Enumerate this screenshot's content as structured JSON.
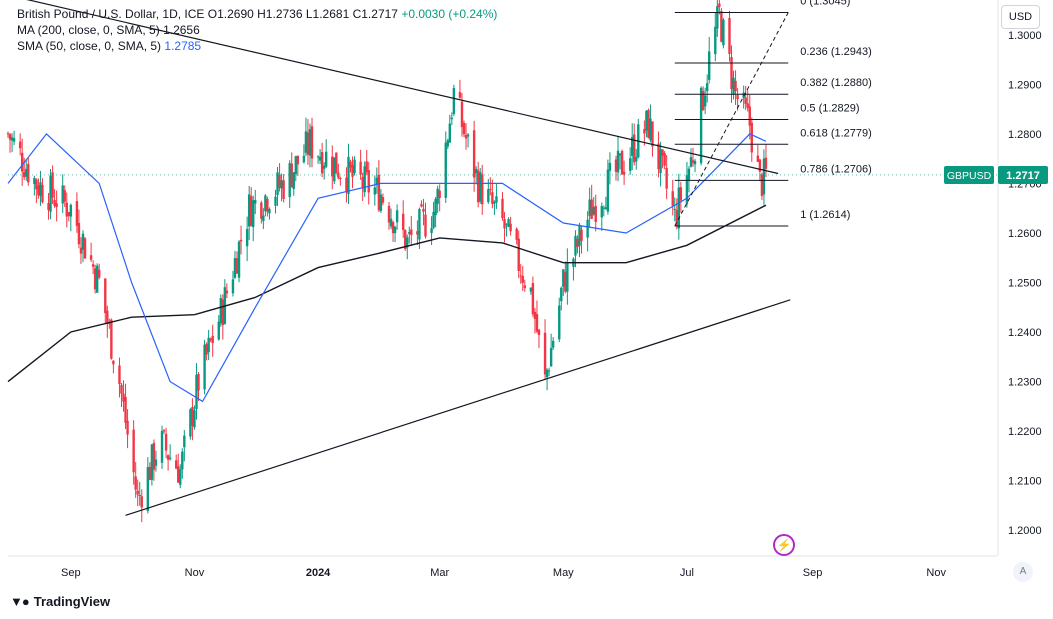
{
  "legend": {
    "title": "British Pound / U.S. Dollar, 1D, ICE",
    "ohlc": {
      "o": "O1.2690",
      "h": "H1.2736",
      "l": "L1.2681",
      "c": "C1.2717",
      "chg": "+0.0030 (+0.24%)"
    },
    "ma_label": "MA (200, close, 0, SMA, 5)",
    "ma_value": "1.2656",
    "sma_label": "SMA (50, close, 0, SMA, 5)",
    "sma_value": "1.2785"
  },
  "currency_button": "USD",
  "auto_button": "A",
  "brand": "TradingView",
  "price_tag": {
    "symbol": "GBPUSD",
    "value": "1.2717"
  },
  "colors": {
    "up": "#089981",
    "down": "#f23645",
    "ma200": "#131722",
    "sma50": "#2962ff",
    "tag": "#089981",
    "grid": "#f0f3fa"
  },
  "icons": {
    "logo": "tradingview-logo-icon",
    "flash": "lightning-icon"
  },
  "chart_data": {
    "type": "candlestick",
    "symbol": "GBPUSD",
    "ylim": [
      1.195,
      1.305
    ],
    "y_ticks": [
      "1.3000",
      "1.2900",
      "1.2800",
      "1.2700",
      "1.2600",
      "1.2500",
      "1.2400",
      "1.2300",
      "1.2200",
      "1.2100",
      "1.2000"
    ],
    "y_tick_values": [
      1.3,
      1.29,
      1.28,
      1.27,
      1.26,
      1.25,
      1.24,
      1.23,
      1.22,
      1.21,
      1.2
    ],
    "x_ticks": [
      "Sep",
      "Nov",
      "2024",
      "Mar",
      "May",
      "Jul",
      "Sep",
      "Nov"
    ],
    "x_tick_dates": [
      "2023-09-01",
      "2023-11-01",
      "2024-01-01",
      "2024-03-01",
      "2024-05-01",
      "2024-07-01",
      "2024-09-01",
      "2024-11-01"
    ],
    "x_range": [
      "2023-08-01",
      "2024-12-01"
    ],
    "price_path": [
      [
        "2023-08-01",
        1.28
      ],
      [
        "2023-08-15",
        1.27
      ],
      [
        "2023-09-01",
        1.265
      ],
      [
        "2023-09-15",
        1.25
      ],
      [
        "2023-09-25",
        1.23
      ],
      [
        "2023-10-04",
        1.206
      ],
      [
        "2023-10-15",
        1.218
      ],
      [
        "2023-10-25",
        1.212
      ],
      [
        "2023-11-03",
        1.23
      ],
      [
        "2023-11-15",
        1.245
      ],
      [
        "2023-11-28",
        1.265
      ],
      [
        "2023-12-15",
        1.27
      ],
      [
        "2023-12-28",
        1.278
      ],
      [
        "2024-01-15",
        1.272
      ],
      [
        "2024-02-01",
        1.268
      ],
      [
        "2024-02-14",
        1.258
      ],
      [
        "2024-02-28",
        1.265
      ],
      [
        "2024-03-08",
        1.288
      ],
      [
        "2024-03-20",
        1.27
      ],
      [
        "2024-04-01",
        1.262
      ],
      [
        "2024-04-15",
        1.248
      ],
      [
        "2024-04-22",
        1.23
      ],
      [
        "2024-05-01",
        1.25
      ],
      [
        "2024-05-15",
        1.265
      ],
      [
        "2024-06-01",
        1.275
      ],
      [
        "2024-06-12",
        1.282
      ],
      [
        "2024-06-25",
        1.263
      ],
      [
        "2024-07-04",
        1.276
      ],
      [
        "2024-07-12",
        1.295
      ],
      [
        "2024-07-17",
        1.304
      ],
      [
        "2024-07-25",
        1.288
      ],
      [
        "2024-08-01",
        1.282
      ],
      [
        "2024-08-06",
        1.27
      ],
      [
        "2024-08-09",
        1.2717
      ]
    ],
    "ma200": [
      [
        "2023-08-01",
        1.23
      ],
      [
        "2023-09-01",
        1.24
      ],
      [
        "2023-10-01",
        1.243
      ],
      [
        "2023-11-01",
        1.2435
      ],
      [
        "2023-12-01",
        1.247
      ],
      [
        "2024-01-01",
        1.253
      ],
      [
        "2024-02-01",
        1.256
      ],
      [
        "2024-03-01",
        1.259
      ],
      [
        "2024-04-01",
        1.258
      ],
      [
        "2024-05-01",
        1.254
      ],
      [
        "2024-06-01",
        1.254
      ],
      [
        "2024-07-01",
        1.2575
      ],
      [
        "2024-08-09",
        1.2656
      ]
    ],
    "sma50": [
      [
        "2023-08-01",
        1.27
      ],
      [
        "2023-08-20",
        1.28
      ],
      [
        "2023-09-15",
        1.27
      ],
      [
        "2023-10-01",
        1.25
      ],
      [
        "2023-10-20",
        1.23
      ],
      [
        "2023-11-05",
        1.226
      ],
      [
        "2023-12-01",
        1.245
      ],
      [
        "2024-01-01",
        1.267
      ],
      [
        "2024-02-01",
        1.27
      ],
      [
        "2024-03-01",
        1.27
      ],
      [
        "2024-04-01",
        1.27
      ],
      [
        "2024-05-01",
        1.262
      ],
      [
        "2024-06-01",
        1.26
      ],
      [
        "2024-07-01",
        1.267
      ],
      [
        "2024-08-01",
        1.28
      ],
      [
        "2024-08-09",
        1.2785
      ]
    ],
    "trendlines": [
      {
        "from": [
          "2023-08-01",
          1.308
        ],
        "to": [
          "2024-08-15",
          1.272
        ]
      },
      {
        "from": [
          "2023-09-28",
          1.203
        ],
        "to": [
          "2024-08-21",
          1.2465
        ]
      }
    ],
    "fib_anchor": {
      "from": [
        "2024-06-25",
        1.2614
      ],
      "to": [
        "2024-08-20",
        1.3045
      ]
    },
    "fibonacci": {
      "labels": [
        "0 (1.3045)",
        "0.236 (1.2943)",
        "0.382 (1.2880)",
        "0.5 (1.2829)",
        "0.618 (1.2779)",
        "0.786 (1.2706)",
        "1 (1.2614)"
      ],
      "levels": [
        1.3045,
        1.2943,
        1.288,
        1.2829,
        1.2779,
        1.2706,
        1.2614
      ],
      "x_range": [
        "2024-06-25",
        "2024-08-20"
      ]
    },
    "last_price": 1.2717
  }
}
